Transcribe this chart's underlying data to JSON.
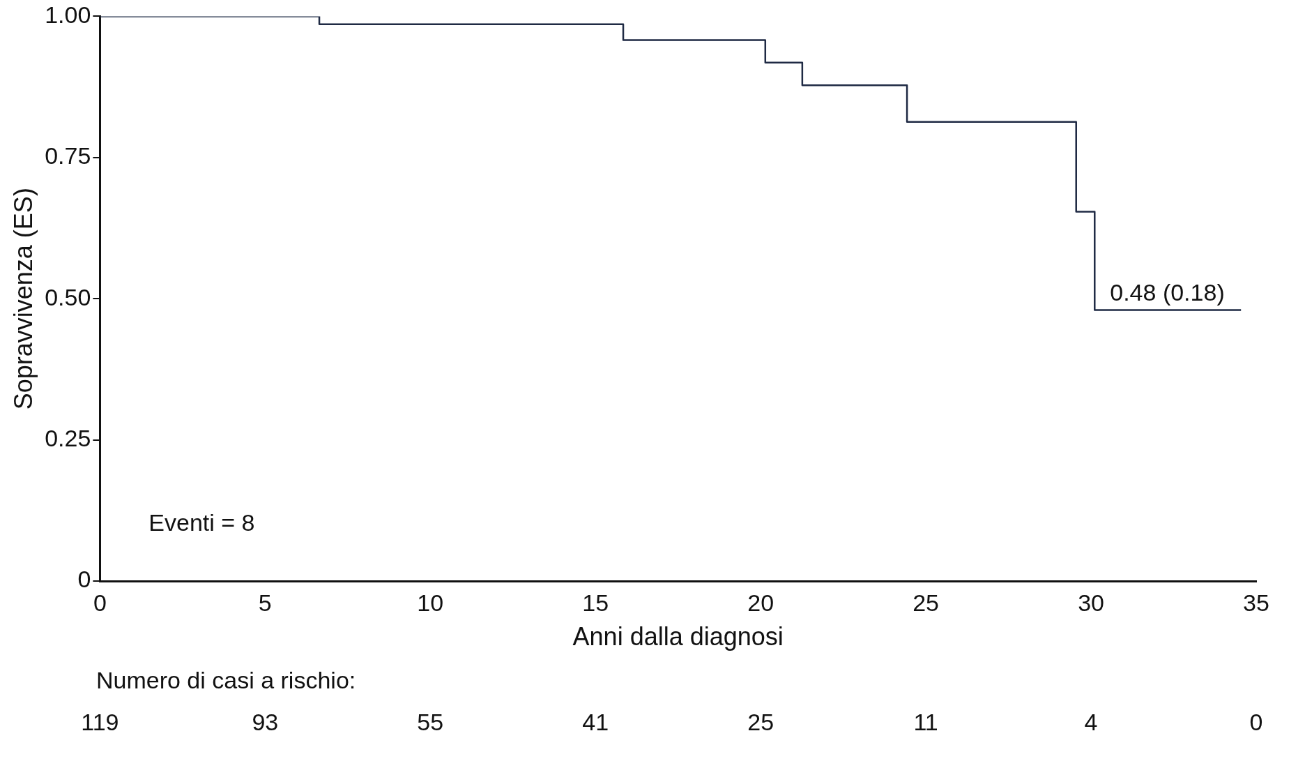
{
  "chart_data": {
    "type": "step",
    "xlabel": "Anni dalla diagnosi",
    "ylabel": "Sopravvivenza (ES)",
    "x": [
      0,
      6.64,
      15.84,
      20.14,
      21.26,
      24.43,
      29.55,
      30.11,
      34.54
    ],
    "series": [
      {
        "color": "#1f2a44",
        "values": [
          1,
          0.986,
          0.958,
          0.918,
          0.878,
          0.813,
          0.654,
          0.48,
          0.48
        ]
      }
    ],
    "xlim": [
      0,
      35
    ],
    "xticks": [
      0,
      5,
      10,
      15,
      20,
      25,
      30,
      35
    ],
    "ylim": [
      0,
      1
    ],
    "yticks": [
      0,
      {
        "value": 0.25,
        "label": "0.25"
      },
      {
        "value": 0.5,
        "label": "0.50"
      },
      {
        "value": 0.75,
        "label": "0.75"
      },
      {
        "value": 1,
        "label": "1.00"
      }
    ],
    "grid": false,
    "legend": false,
    "marker": "none",
    "line_style": "solid",
    "annotations": [
      {
        "text": "0.48 (0.18)",
        "x": 30.11,
        "y": 0.48
      },
      "Eventi = 8",
      "Numero di casi a rischio:",
      "119",
      "93",
      "55",
      "41",
      "25",
      "11",
      "4",
      "0"
    ]
  }
}
